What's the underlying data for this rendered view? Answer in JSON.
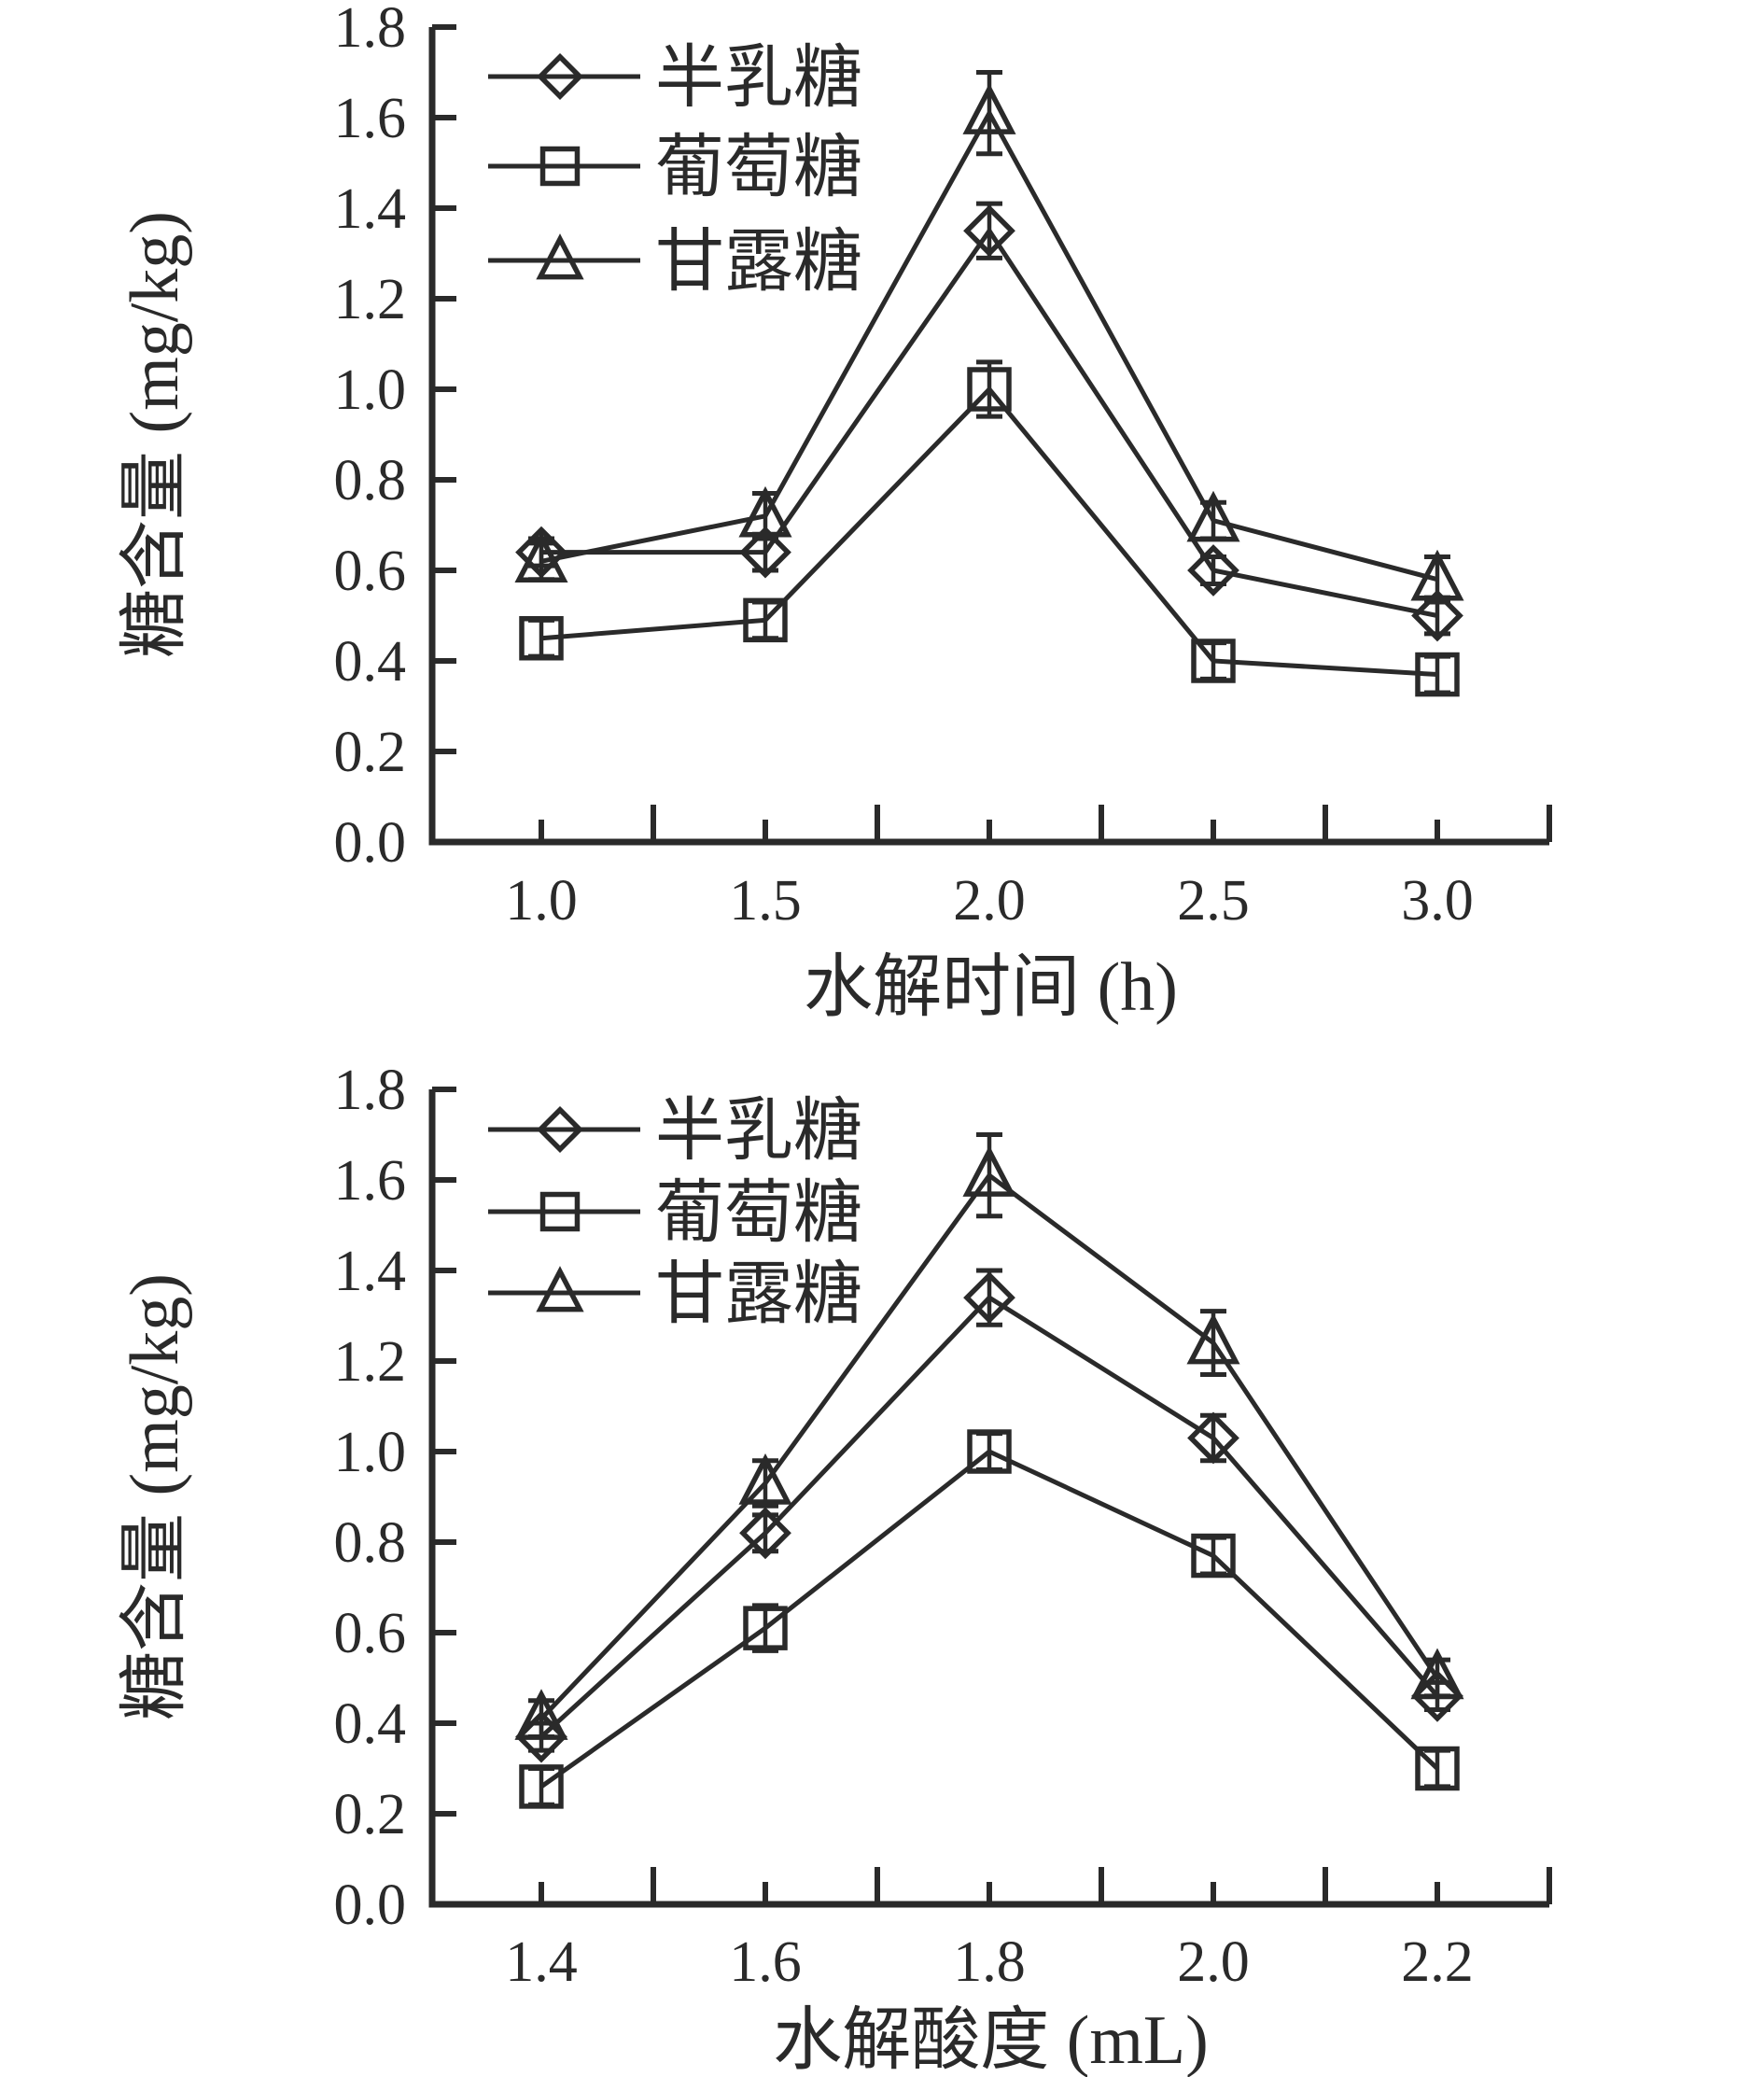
{
  "style": {
    "ink": "#2a2a2a",
    "background": "#ffffff",
    "marker_fill": "none"
  },
  "chart_data": [
    {
      "type": "line",
      "title": "",
      "xlabel": "水解时间 (h)",
      "ylabel": "糖含量 (mg/kg)",
      "ylim": [
        0.0,
        1.8
      ],
      "grid": false,
      "legend_position": "upper-left-inside",
      "legend_entries": [
        "半乳糖",
        "葡萄糖",
        "甘露糖"
      ],
      "categories": [
        1.0,
        1.5,
        2.0,
        2.5,
        3.0
      ],
      "xticks": [
        "1.0",
        "1.5",
        "2.0",
        "2.5",
        "3.0"
      ],
      "yticks": [
        "0.0",
        "0.2",
        "0.4",
        "0.6",
        "0.8",
        "1.0",
        "1.2",
        "1.4",
        "1.6",
        "1.8"
      ],
      "series": [
        {
          "key": "galactose",
          "name": "半乳糖",
          "marker": "diamond",
          "values": [
            0.64,
            0.64,
            1.35,
            0.6,
            0.5
          ],
          "errors": [
            0.03,
            0.04,
            0.06,
            0.03,
            0.04
          ]
        },
        {
          "key": "glucose",
          "name": "葡萄糖",
          "marker": "square",
          "values": [
            0.45,
            0.49,
            1.0,
            0.4,
            0.37
          ],
          "errors": [
            0.04,
            0.04,
            0.06,
            0.04,
            0.04
          ]
        },
        {
          "key": "mannose",
          "name": "甘露糖",
          "marker": "triangle",
          "values": [
            0.62,
            0.72,
            1.61,
            0.71,
            0.58
          ],
          "errors": [
            0.04,
            0.05,
            0.09,
            0.04,
            0.05
          ]
        }
      ]
    },
    {
      "type": "line",
      "title": "",
      "xlabel": "水解酸度 (mL)",
      "ylabel": "糖含量 (mg/kg)",
      "ylim": [
        0.0,
        1.8
      ],
      "grid": false,
      "legend_position": "upper-left-inside",
      "legend_entries": [
        "半乳糖",
        "葡萄糖",
        "甘露糖"
      ],
      "categories": [
        1.4,
        1.6,
        1.8,
        2.0,
        2.2
      ],
      "xticks": [
        "1.4",
        "1.6",
        "1.8",
        "2.0",
        "2.2"
      ],
      "yticks": [
        "0.0",
        "0.2",
        "0.4",
        "0.6",
        "0.8",
        "1.0",
        "1.2",
        "1.4",
        "1.6",
        "1.8"
      ],
      "series": [
        {
          "key": "galactose",
          "name": "半乳糖",
          "marker": "diamond",
          "values": [
            0.37,
            0.82,
            1.34,
            1.03,
            0.46
          ],
          "errors": [
            0.03,
            0.04,
            0.06,
            0.05,
            0.03
          ]
        },
        {
          "key": "glucose",
          "name": "葡萄糖",
          "marker": "square",
          "values": [
            0.26,
            0.61,
            1.0,
            0.77,
            0.3
          ],
          "errors": [
            0.04,
            0.05,
            0.04,
            0.04,
            0.04
          ]
        },
        {
          "key": "mannose",
          "name": "甘露糖",
          "marker": "triangle",
          "values": [
            0.41,
            0.93,
            1.61,
            1.24,
            0.5
          ],
          "errors": [
            0.04,
            0.05,
            0.09,
            0.07,
            0.04
          ]
        }
      ]
    }
  ]
}
